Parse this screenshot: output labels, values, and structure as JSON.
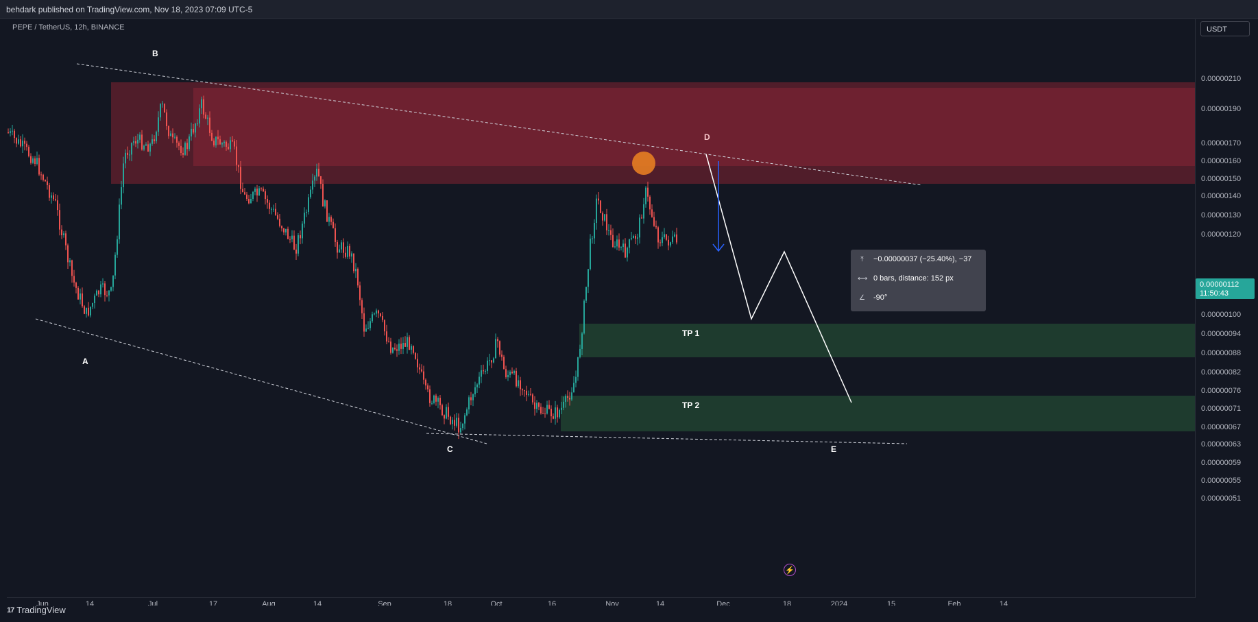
{
  "header": {
    "publisher_text": "behdark published on TradingView.com, Nov 18, 2023 07:09 UTC-5"
  },
  "chart": {
    "symbol_label": "PEPE / TetherUS, 12h, BINANCE",
    "currency_button": "USDT",
    "current_price": "0.00000112",
    "countdown": "11:50:43",
    "price_ticks": [
      "0.00000210",
      "0.00000190",
      "0.00000170",
      "0.00000160",
      "0.00000150",
      "0.00000140",
      "0.00000130",
      "0.00000120",
      "0.00000112",
      "0.00000100",
      "0.00000094",
      "0.00000088",
      "0.00000082",
      "0.00000076",
      "0.00000071",
      "0.00000067",
      "0.00000063",
      "0.00000059",
      "0.00000055",
      "0.00000051"
    ],
    "time_ticks": [
      "Jun",
      "14",
      "Jul",
      "17",
      "Aug",
      "14",
      "Sep",
      "18",
      "Oct",
      "16",
      "Nov",
      "14",
      "Dec",
      "18",
      "2024",
      "15",
      "Feb",
      "14"
    ],
    "wave_labels": {
      "a": "A",
      "b": "B",
      "c": "C",
      "d": "D",
      "e": "E"
    },
    "zone_labels": {
      "tp1": "TP 1",
      "tp2": "TP 2"
    },
    "colors": {
      "up": "#26a69a",
      "down": "#ef5350",
      "resistance_zone": "#7a2433",
      "target_zone": "#1e3b2e",
      "highlight": "#e67e22",
      "arrow": "#2962ff"
    }
  },
  "measure_tooltip": {
    "price_change": "−0.00000037 (−25.40%), −37",
    "bars_distance": "0 bars, distance: 152 px",
    "angle": "-90°",
    "icons": [
      "price-range-icon",
      "bars-range-icon",
      "angle-icon"
    ]
  },
  "footer": {
    "brand": "TradingView",
    "logo_mark": "17"
  },
  "icons": {
    "flash": "flash-icon"
  }
}
